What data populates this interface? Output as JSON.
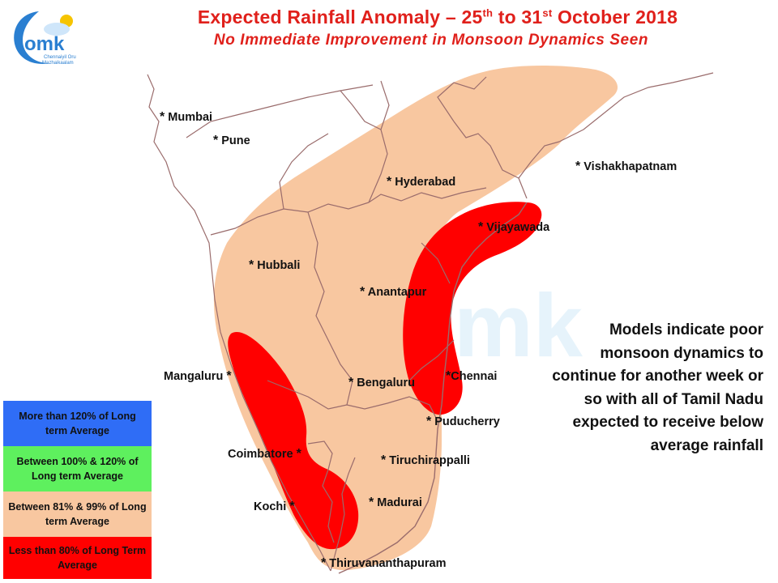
{
  "title": {
    "main_prefix": "Expected Rainfall Anomaly – 25",
    "sup1": "th",
    "mid": " to 31",
    "sup2": "st",
    "suffix": " October 2018",
    "subtitle": "No Immediate Improvement in Monsoon Dynamics Seen"
  },
  "logo": {
    "text": "omk",
    "tagline_1": "Chennaiyil Oru",
    "tagline_2": "Mazhaikaalam",
    "colors": {
      "blue": "#2a7fd1",
      "sun": "#f6c400"
    }
  },
  "colors": {
    "above_120": "#2f6df6",
    "between_100_120": "#5ef05e",
    "between_81_99": "#f8c7a0",
    "below_80": "#ff0000",
    "border_line": "#9a6c6c"
  },
  "cities": [
    {
      "name": "Mumbai"
    },
    {
      "name": "Pune"
    },
    {
      "name": "Hyderabad"
    },
    {
      "name": "Vishakhapatnam"
    },
    {
      "name": "Vijayawada"
    },
    {
      "name": "Hubbali"
    },
    {
      "name": "Anantapur"
    },
    {
      "name": "Mangaluru"
    },
    {
      "name": "Bengaluru"
    },
    {
      "name": "Chennai"
    },
    {
      "name": "Puducherry"
    },
    {
      "name": "Coimbatore"
    },
    {
      "name": "Tiruchirappalli"
    },
    {
      "name": "Kochi"
    },
    {
      "name": "Madurai"
    },
    {
      "name": "Thiruvananthapuram"
    }
  ],
  "note": [
    "Models indicate poor",
    "monsoon dynamics to",
    "continue for another week or",
    "so with all of Tamil Nadu",
    "expected to receive below",
    "average rainfall"
  ],
  "legend": [
    {
      "label": "More than 120% of Long term Average"
    },
    {
      "label": "Between 100% & 120% of Long term Average"
    },
    {
      "label": "Between 81% & 99% of Long term Average"
    },
    {
      "label": "Less than 80% of Long Term Average"
    }
  ]
}
